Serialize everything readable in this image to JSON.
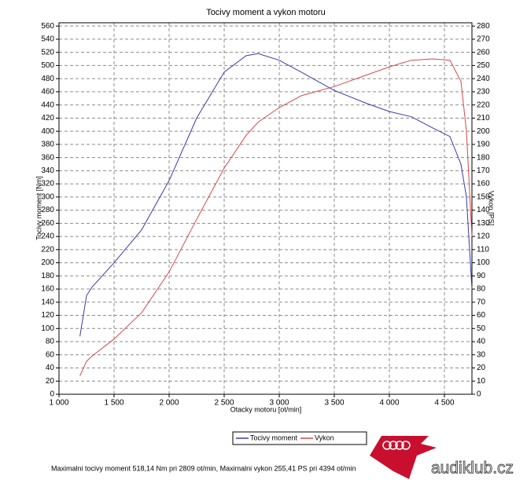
{
  "chart_data": {
    "type": "line",
    "title": "Tocivy moment a vykon motoru",
    "x_label": "Otacky motoru [ot/min]",
    "y_label": "Tocivy moment [Nm]",
    "y2_label": "Vykon [PS]",
    "x": [
      1190,
      1250,
      1300,
      1500,
      1750,
      2000,
      2250,
      2500,
      2700,
      2809,
      3000,
      3200,
      3500,
      3800,
      4000,
      4200,
      4394,
      4550,
      4650,
      4700,
      4750
    ],
    "series": [
      {
        "name": "Tocivy moment",
        "color": "#3a3aa8",
        "values": [
          88,
          150,
          163,
          200,
          250,
          325,
          420,
          490,
          515,
          518,
          508,
          490,
          462,
          442,
          430,
          422,
          405,
          392,
          350,
          300,
          160
        ]
      },
      {
        "name": "Vykon",
        "color": "#d84848",
        "axis": "y2",
        "values": [
          14,
          25,
          29,
          42,
          62,
          93,
          133,
          172,
          197,
          207,
          218,
          227,
          234,
          243,
          249,
          254,
          255,
          254,
          238,
          200,
          120
        ]
      }
    ],
    "xlim": [
      1000,
      4750
    ],
    "xticks": [
      {
        "value": 1000,
        "label": "1 000"
      },
      {
        "value": 1500,
        "label": "1 500"
      },
      {
        "value": 2000,
        "label": "2 000"
      },
      {
        "value": 2500,
        "label": "2 500"
      },
      {
        "value": 3000,
        "label": "3 000"
      },
      {
        "value": 3500,
        "label": "3 500"
      },
      {
        "value": 4000,
        "label": "4 000"
      },
      {
        "value": 4500,
        "label": "4 500"
      }
    ],
    "ylim": [
      0,
      565
    ],
    "yticks": [
      0,
      20,
      40,
      60,
      80,
      100,
      120,
      140,
      160,
      180,
      200,
      220,
      240,
      260,
      280,
      300,
      320,
      340,
      360,
      380,
      400,
      420,
      440,
      460,
      480,
      500,
      520,
      540,
      560
    ],
    "y2lim": [
      0,
      282.5
    ],
    "y2ticks": [
      0,
      10,
      20,
      30,
      40,
      50,
      60,
      70,
      80,
      90,
      100,
      110,
      120,
      130,
      140,
      150,
      160,
      170,
      180,
      190,
      200,
      210,
      220,
      230,
      240,
      250,
      260,
      270,
      280
    ],
    "grid": true,
    "legend": "bottom",
    "footer": "Maximalni tocivy moment 518,14 Nm pri 2809 ot/min,  Maximalni vykon 255,41 PS pri 4394 ot/min",
    "logo_text": "audiklub.cz"
  }
}
